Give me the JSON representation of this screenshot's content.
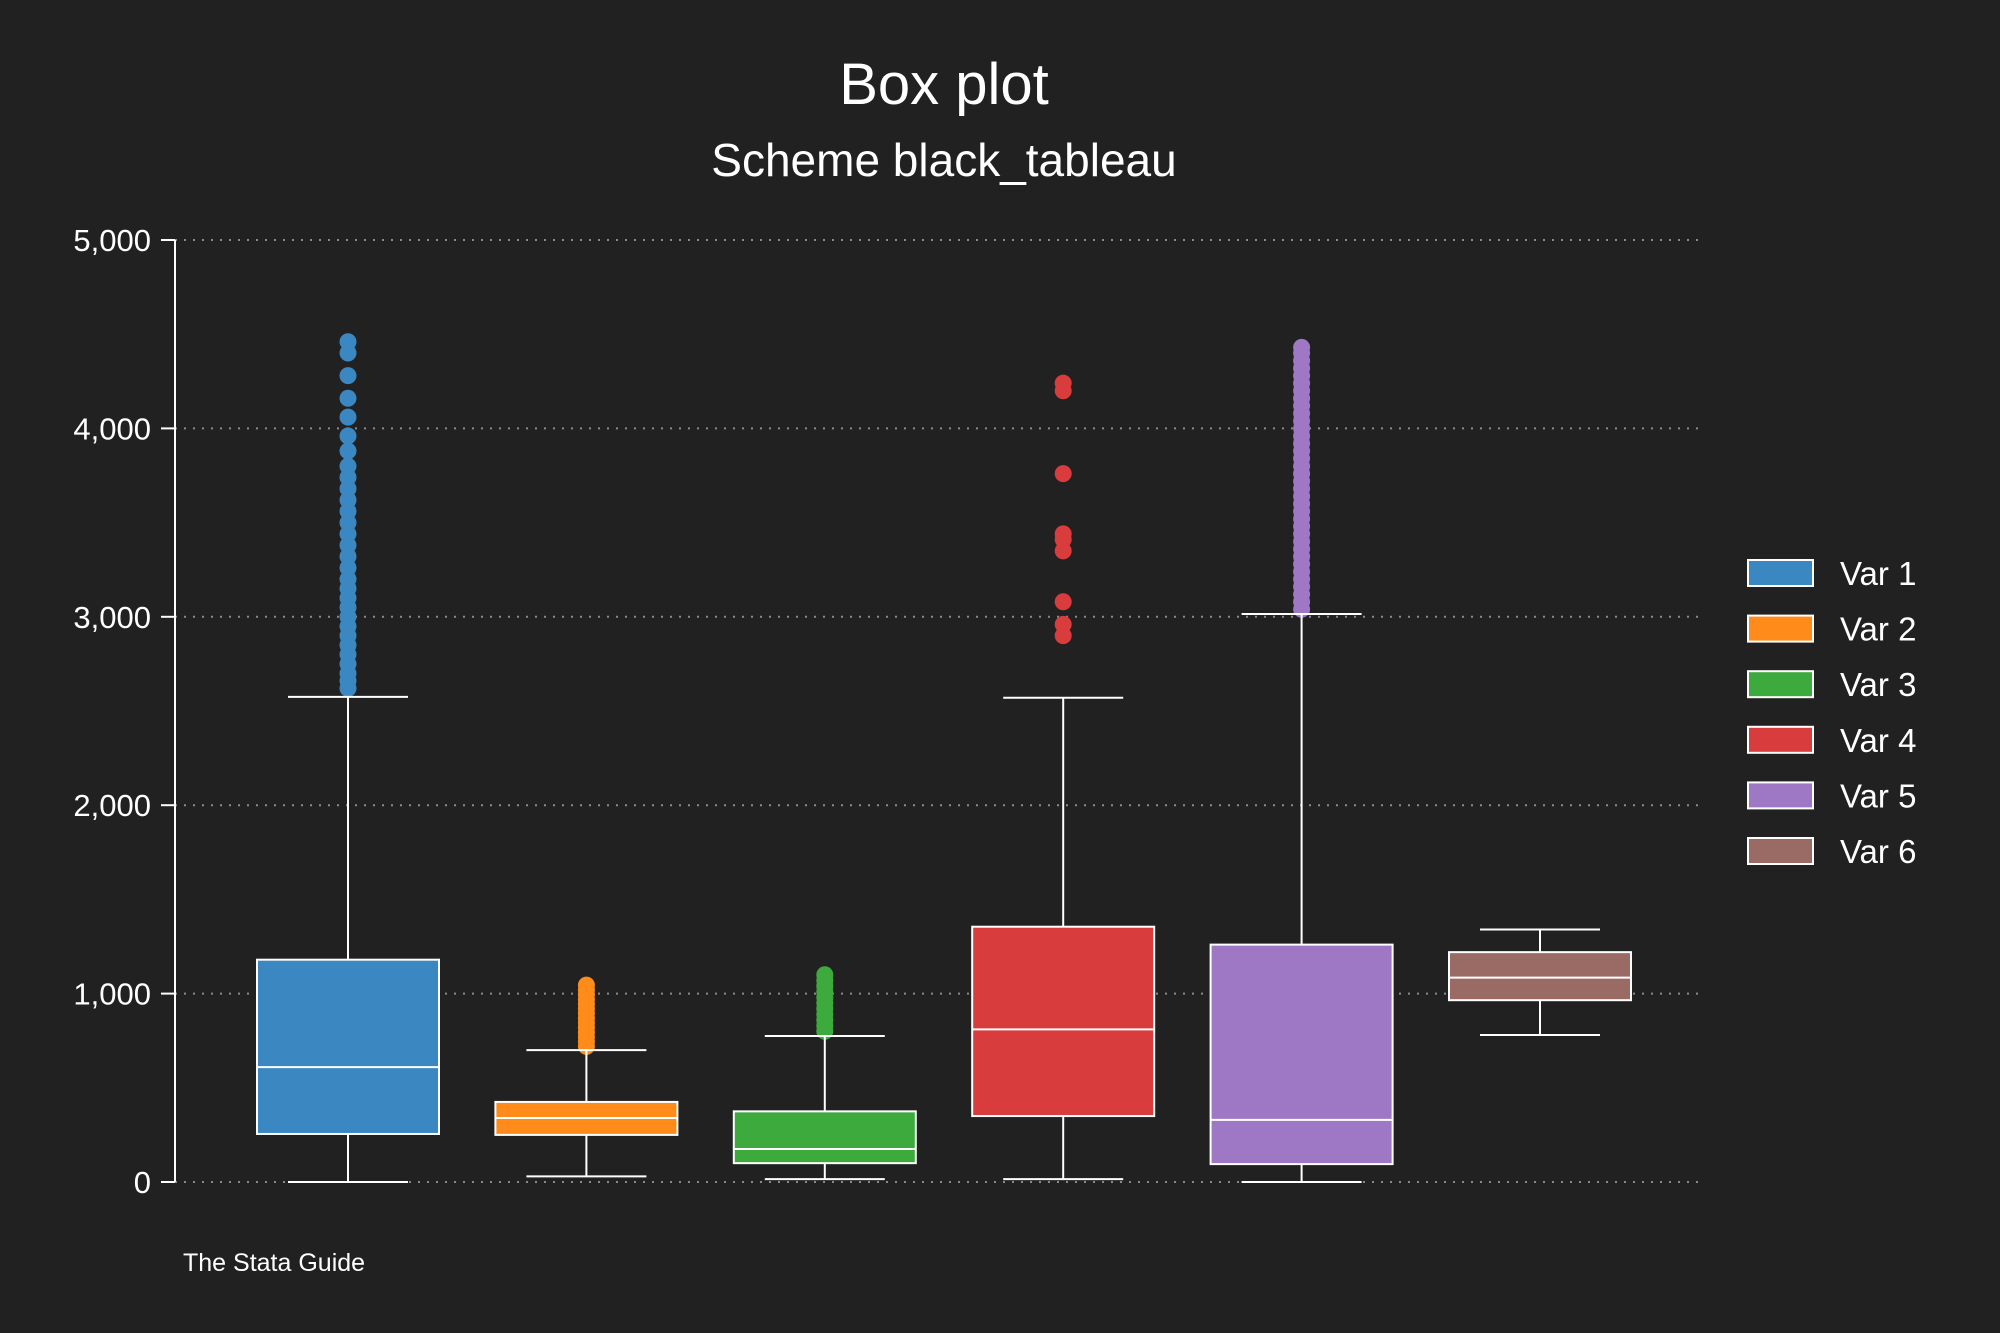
{
  "chart_data": {
    "type": "box",
    "title": "Box plot",
    "subtitle": "Scheme black_tableau",
    "note": "The Stata Guide",
    "xlabel": "",
    "ylabel": "",
    "ylim": [
      0,
      5000
    ],
    "yticks": [
      0,
      1000,
      2000,
      3000,
      4000,
      5000
    ],
    "ytick_labels": [
      "0",
      "1,000",
      "2,000",
      "3,000",
      "4,000",
      "5,000"
    ],
    "grid": true,
    "legend_position": "right",
    "series": [
      {
        "name": "Var 1",
        "color": "#3a87c2",
        "whisker_low": 0,
        "q1": 255,
        "median": 610,
        "q3": 1180,
        "whisker_high": 2575,
        "outliers": [
          2620,
          2660,
          2700,
          2750,
          2800,
          2850,
          2900,
          2950,
          3000,
          3050,
          3100,
          3150,
          3200,
          3260,
          3320,
          3380,
          3440,
          3500,
          3560,
          3620,
          3680,
          3740,
          3800,
          3880,
          3960,
          4060,
          4160,
          4280,
          4400,
          4460
        ]
      },
      {
        "name": "Var 2",
        "color": "#ff8c1a",
        "whisker_low": 30,
        "q1": 250,
        "median": 340,
        "q3": 425,
        "whisker_high": 700,
        "outliers": [
          720,
          745,
          770,
          795,
          820,
          845,
          870,
          895,
          920,
          945,
          970,
          995,
          1020,
          1045
        ]
      },
      {
        "name": "Var 3",
        "color": "#3daa3d",
        "whisker_low": 15,
        "q1": 100,
        "median": 175,
        "q3": 375,
        "whisker_high": 775,
        "outliers": [
          800,
          830,
          860,
          890,
          920,
          950,
          980,
          1010,
          1040,
          1070,
          1100
        ]
      },
      {
        "name": "Var 4",
        "color": "#d93c3c",
        "whisker_low": 15,
        "q1": 350,
        "median": 810,
        "q3": 1355,
        "whisker_high": 2570,
        "outliers": [
          2900,
          2960,
          3080,
          3350,
          3410,
          3440,
          3760,
          4200,
          4240
        ]
      },
      {
        "name": "Var 5",
        "color": "#9e78c4",
        "whisker_low": 0,
        "q1": 95,
        "median": 330,
        "q3": 1260,
        "whisker_high": 3015,
        "outliers": [
          3040,
          3080,
          3120,
          3160,
          3200,
          3240,
          3280,
          3320,
          3360,
          3400,
          3440,
          3480,
          3520,
          3560,
          3600,
          3640,
          3680,
          3720,
          3760,
          3800,
          3840,
          3880,
          3920,
          3960,
          4000,
          4040,
          4080,
          4120,
          4160,
          4200,
          4240,
          4280,
          4320,
          4360,
          4400,
          4430
        ]
      },
      {
        "name": "Var 6",
        "color": "#9a6b64",
        "whisker_low": 780,
        "q1": 965,
        "median": 1085,
        "q3": 1220,
        "whisker_high": 1340,
        "outliers": []
      }
    ]
  }
}
